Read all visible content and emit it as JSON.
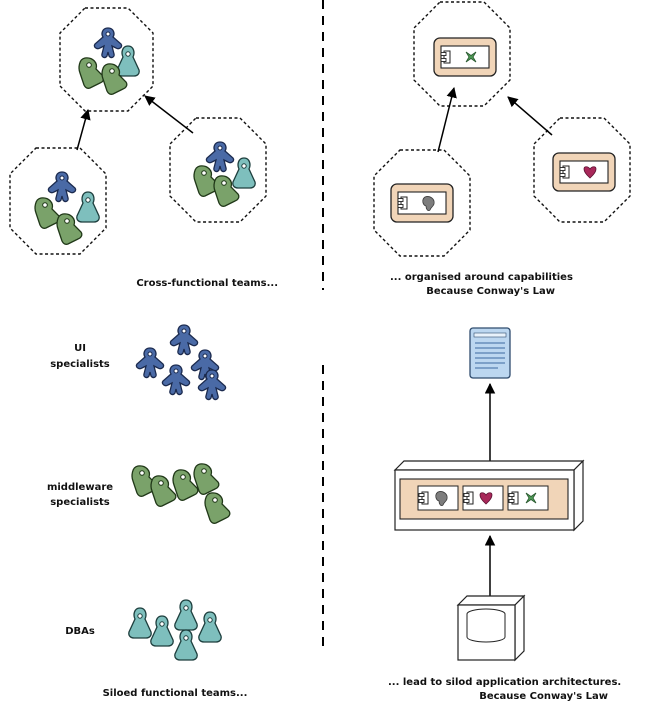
{
  "colors": {
    "ui": "#4a6aa6",
    "middleware": "#7aa26a",
    "dba": "#7ebfbd",
    "component_fill": "#f1d5b8",
    "capability_x": "#4e9a55",
    "capability_heart": "#a8285a",
    "capability_blob": "#7d7d7d",
    "document": "#bcd7f0"
  },
  "top_left": {
    "caption": "Cross-functional teams..."
  },
  "top_right": {
    "caption_1": "... organised around capabilities",
    "caption_2": "Because Conway's Law"
  },
  "bottom_left": {
    "ui_label_1": "UI",
    "ui_label_2": "specialists",
    "mw_label_1": "middleware",
    "mw_label_2": "specialists",
    "dba_label": "DBAs",
    "caption": "Siloed functional teams..."
  },
  "bottom_right": {
    "caption_1": "... lead to silod application architectures.",
    "caption_2": "Because Conway's Law"
  }
}
